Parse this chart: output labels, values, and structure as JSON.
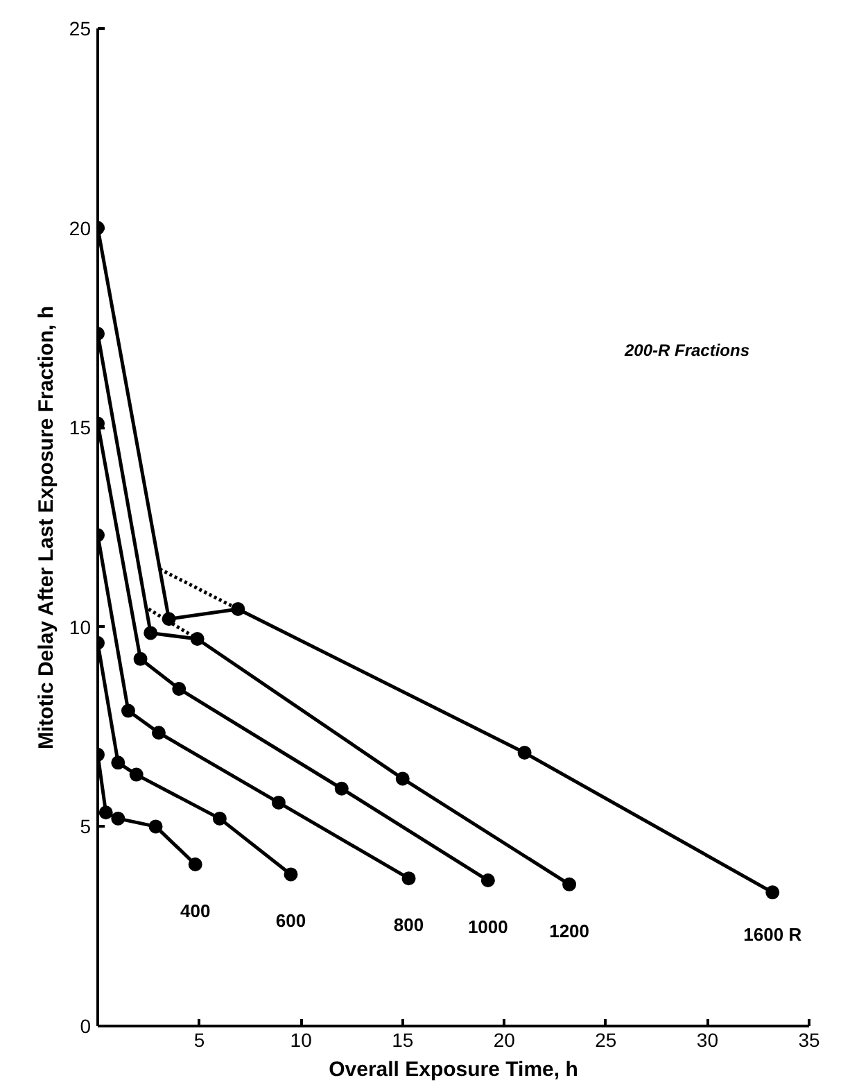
{
  "chart_data": {
    "type": "line",
    "xlabel": "Overall Exposure Time, h",
    "ylabel": "Mitotic Delay After Last Exposure Fraction, h",
    "xlim": [
      0,
      35
    ],
    "ylim": [
      0,
      25
    ],
    "xticks": [
      {
        "value": 0,
        "label": null
      },
      5,
      10,
      15,
      20,
      25,
      30,
      35
    ],
    "yticks": [
      0,
      5,
      10,
      15,
      20,
      25
    ],
    "grid": false,
    "marker": "circle",
    "line_style": "solid",
    "annotations": [
      "200-R Fractions"
    ],
    "series": [
      {
        "name": "400",
        "color": "#000000",
        "x": [
          0,
          0.4,
          1.0,
          2.85,
          4.8
        ],
        "values": [
          6.8,
          5.35,
          5.2,
          5.0,
          4.05
        ]
      },
      {
        "name": "600",
        "color": "#000000",
        "x": [
          0,
          1.0,
          1.9,
          6.0,
          9.5
        ],
        "values": [
          9.6,
          6.6,
          6.3,
          5.2,
          3.8
        ]
      },
      {
        "name": "800",
        "color": "#000000",
        "x": [
          0,
          1.5,
          3.0,
          8.9,
          15.3
        ],
        "values": [
          12.3,
          7.9,
          7.35,
          5.6,
          3.7
        ]
      },
      {
        "name": "1000",
        "color": "#000000",
        "x": [
          0,
          2.1,
          4.0,
          12.0,
          19.2
        ],
        "values": [
          15.1,
          9.2,
          8.45,
          5.95,
          3.65
        ]
      },
      {
        "name": "1200",
        "color": "#000000",
        "x": [
          0,
          2.6,
          4.9,
          15.0,
          23.2
        ],
        "values": [
          17.35,
          9.85,
          9.7,
          6.2,
          3.55
        ]
      },
      {
        "name": "1600 R",
        "color": "#000000",
        "x": [
          0,
          3.5,
          6.9,
          21.0,
          33.2
        ],
        "values": [
          20,
          10.2,
          10.45,
          6.85,
          3.35
        ]
      },
      {
        "color": "#000000",
        "x": [
          3.05,
          6.9
        ],
        "values": [
          11.45,
          10.45
        ],
        "marker": "none",
        "line_style": "dotted"
      },
      {
        "color": "#000000",
        "x": [
          2.5,
          4.9
        ],
        "values": [
          10.45,
          9.7
        ],
        "marker": "none",
        "line_style": "dotted"
      }
    ]
  }
}
